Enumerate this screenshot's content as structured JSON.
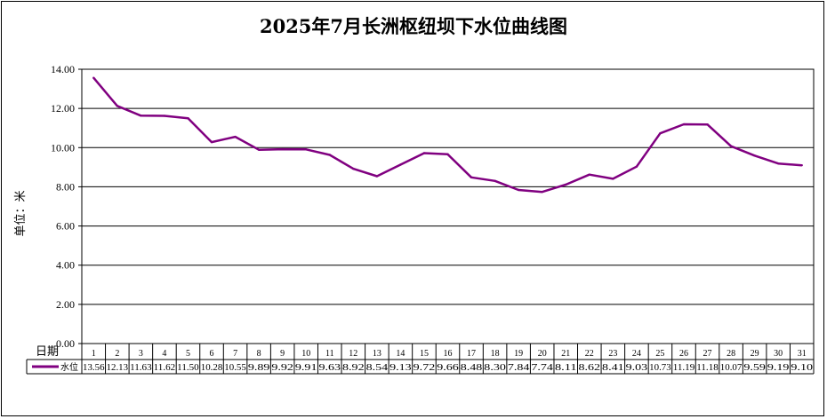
{
  "chart_data": {
    "type": "line",
    "title": "2025年7月长洲枢纽坝下水位曲线图",
    "ylabel": "单位：米",
    "xlabel": "日期",
    "ylim": [
      0,
      14
    ],
    "yticks": [
      "0.00",
      "2.00",
      "4.00",
      "6.00",
      "8.00",
      "10.00",
      "12.00",
      "14.00"
    ],
    "categories": [
      "1",
      "2",
      "3",
      "4",
      "5",
      "6",
      "7",
      "8",
      "9",
      "10",
      "11",
      "12",
      "13",
      "14",
      "15",
      "16",
      "17",
      "18",
      "19",
      "20",
      "21",
      "22",
      "23",
      "24",
      "25",
      "26",
      "27",
      "28",
      "29",
      "30",
      "31"
    ],
    "series": [
      {
        "name": "水位",
        "color": "#800080",
        "values": [
          13.56,
          12.13,
          11.63,
          11.62,
          11.5,
          10.28,
          10.55,
          9.89,
          9.92,
          9.91,
          9.63,
          8.92,
          8.54,
          9.13,
          9.72,
          9.66,
          8.48,
          8.3,
          7.84,
          7.74,
          8.11,
          8.62,
          8.41,
          9.03,
          10.73,
          11.19,
          11.18,
          10.07,
          9.59,
          9.19,
          9.1
        ],
        "labels": [
          "13.56",
          "12.13",
          "11.63",
          "11.62",
          "11.50",
          "10.28",
          "10.55",
          "9.89",
          "9.92",
          "9.91",
          "9.63",
          "8.92",
          "8.54",
          "9.13",
          "9.72",
          "9.66",
          "8.48",
          "8.30",
          "7.84",
          "7.74",
          "8.11",
          "8.62",
          "8.41",
          "9.03",
          "10.73",
          "11.19",
          "11.18",
          "10.07",
          "9.59",
          "9.19",
          "9.10"
        ]
      }
    ],
    "grid": true,
    "legend": "data-table-left"
  }
}
